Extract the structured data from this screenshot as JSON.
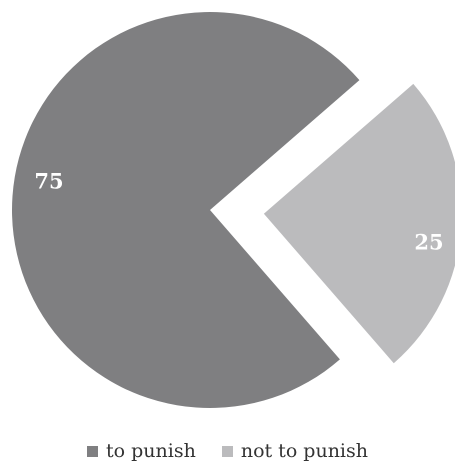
{
  "chart_data": {
    "type": "pie",
    "slices": [
      {
        "label": "to punish",
        "value": 75,
        "value_label": "75",
        "color": "#7f7f81",
        "exploded": false
      },
      {
        "label": "not to punish",
        "value": 25,
        "value_label": "25",
        "color": "#bbbbbd",
        "exploded": true
      }
    ],
    "legend_placement": "bottom",
    "title": ""
  },
  "legend": {
    "items": [
      {
        "label": "to punish",
        "color": "#7f7f81"
      },
      {
        "label": "not to punish",
        "color": "#bbbbbd"
      }
    ]
  }
}
